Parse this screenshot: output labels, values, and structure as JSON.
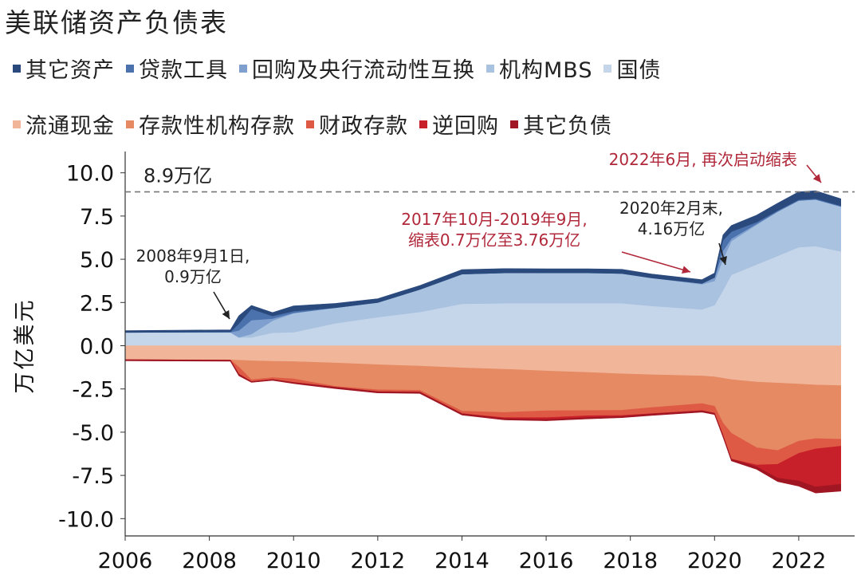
{
  "chart_data": {
    "type": "area",
    "title": "美联储资产负债表",
    "ylabel": "万亿美元",
    "xlabel": "",
    "xlim": [
      2006,
      2023.1
    ],
    "ylim": [
      -11,
      11
    ],
    "yticks": [
      "10.0",
      "7.5",
      "5.0",
      "2.5",
      "0.0",
      "-2.5",
      "-5.0",
      "-7.5",
      "-10.0"
    ],
    "xticks": [
      "2006",
      "2008",
      "2010",
      "2012",
      "2014",
      "2016",
      "2018",
      "2020",
      "2022"
    ],
    "x": [
      2006,
      2008.5,
      2008.7,
      2009.0,
      2009.5,
      2010,
      2011,
      2012,
      2013,
      2014,
      2015,
      2016,
      2017,
      2017.8,
      2018.5,
      2019.7,
      2020.0,
      2020.2,
      2020.4,
      2021,
      2021.5,
      2022,
      2022.4,
      2023
    ],
    "asset_series": [
      {
        "name": "国债",
        "color": "#c6d6ea",
        "values": [
          0.77,
          0.77,
          0.48,
          0.48,
          0.75,
          0.78,
          1.3,
          1.65,
          1.95,
          2.42,
          2.46,
          2.46,
          2.46,
          2.46,
          2.3,
          2.1,
          2.35,
          3.2,
          4.1,
          4.7,
          5.2,
          5.7,
          5.76,
          5.45
        ]
      },
      {
        "name": "机构MBS",
        "color": "#a9c2e0",
        "values": [
          0,
          0,
          0,
          0.2,
          0.7,
          1.1,
          0.9,
          0.85,
          1.3,
          1.72,
          1.75,
          1.75,
          1.75,
          1.72,
          1.62,
          1.45,
          1.4,
          1.8,
          1.95,
          2.3,
          2.55,
          2.7,
          2.7,
          2.6
        ]
      },
      {
        "name": "回购及央行流动性互换",
        "color": "#7f9fcf",
        "values": [
          0,
          0.02,
          0.4,
          0.8,
          0.12,
          0.02,
          0,
          0,
          0,
          0,
          0,
          0,
          0,
          0,
          0,
          0.05,
          0.2,
          0.5,
          0.15,
          0.05,
          0.02,
          0,
          0,
          0
        ]
      },
      {
        "name": "贷款工具",
        "color": "#4b72ad",
        "values": [
          0,
          0.01,
          0.4,
          0.65,
          0.15,
          0.1,
          0,
          0,
          0,
          0,
          0,
          0,
          0,
          0,
          0,
          0,
          0,
          0.6,
          0.4,
          0.1,
          0.05,
          0.05,
          0.05,
          0.05
        ]
      },
      {
        "name": "其它资产",
        "color": "#2a4a7d",
        "values": [
          0.1,
          0.12,
          0.45,
          0.2,
          0.2,
          0.3,
          0.25,
          0.22,
          0.23,
          0.26,
          0.25,
          0.24,
          0.24,
          0.24,
          0.23,
          0.22,
          0.25,
          0.3,
          0.35,
          0.4,
          0.42,
          0.45,
          0.45,
          0.4
        ]
      }
    ],
    "liability_series": [
      {
        "name": "流通现金",
        "color": "#f1b59a",
        "values": [
          0.8,
          0.82,
          0.84,
          0.87,
          0.9,
          0.92,
          1.0,
          1.1,
          1.18,
          1.28,
          1.36,
          1.46,
          1.55,
          1.63,
          1.68,
          1.75,
          1.8,
          1.88,
          1.96,
          2.1,
          2.16,
          2.22,
          2.27,
          2.31
        ]
      },
      {
        "name": "存款性机构存款",
        "color": "#e58a62",
        "values": [
          0.01,
          0.01,
          0.4,
          1.1,
          0.95,
          1.0,
          1.35,
          1.45,
          1.4,
          2.5,
          2.5,
          2.3,
          2.2,
          2.1,
          1.9,
          1.6,
          1.7,
          2.6,
          3.1,
          3.8,
          3.9,
          3.3,
          3.1,
          3.1
        ]
      },
      {
        "name": "财政存款",
        "color": "#de5a45",
        "values": [
          0,
          0,
          0.4,
          0.1,
          0.1,
          0.2,
          0.05,
          0.1,
          0.1,
          0.15,
          0.3,
          0.4,
          0.3,
          0.3,
          0.35,
          0.4,
          0.4,
          0.7,
          1.5,
          1.0,
          0.8,
          0.7,
          0.6,
          0.4
        ]
      },
      {
        "name": "逆回购",
        "color": "#c8202a",
        "values": [
          0,
          0,
          0,
          0,
          0,
          0,
          0,
          0,
          0,
          0,
          0.05,
          0.1,
          0.1,
          0.05,
          0.02,
          0.01,
          0,
          0,
          0,
          0.1,
          0.8,
          1.6,
          2.2,
          2.2
        ]
      },
      {
        "name": "其它负债",
        "color": "#a01622",
        "values": [
          0.06,
          0.07,
          0.1,
          0.05,
          0.05,
          0.07,
          0.08,
          0.08,
          0.08,
          0.08,
          0.08,
          0.08,
          0.08,
          0.08,
          0.08,
          0.08,
          0.08,
          0.1,
          0.1,
          0.15,
          0.2,
          0.3,
          0.35,
          0.4
        ]
      }
    ],
    "reference_line": {
      "value": 8.9,
      "label": "8.9万亿",
      "color": "#777777"
    },
    "annotations": [
      {
        "id": "a2008",
        "lines": [
          "2008年9月1日,",
          "0.9万亿"
        ],
        "color": "#222222",
        "x": 2008.67,
        "y": 0.9
      },
      {
        "id": "a2017",
        "lines": [
          "2017年10月-2019年9月,",
          "缩表0.7万亿至3.76万亿"
        ],
        "color": "#b0283a",
        "x": 2019.6,
        "y": 3.8
      },
      {
        "id": "a2020",
        "lines": [
          "2020年2月末,",
          "4.16万亿"
        ],
        "color": "#222222",
        "x": 2020.15,
        "y": 4.3
      },
      {
        "id": "a2022",
        "lines": [
          "2022年6月, 再次启动缩表"
        ],
        "color": "#b0283a",
        "x": 2022.45,
        "y": 8.95
      }
    ]
  }
}
